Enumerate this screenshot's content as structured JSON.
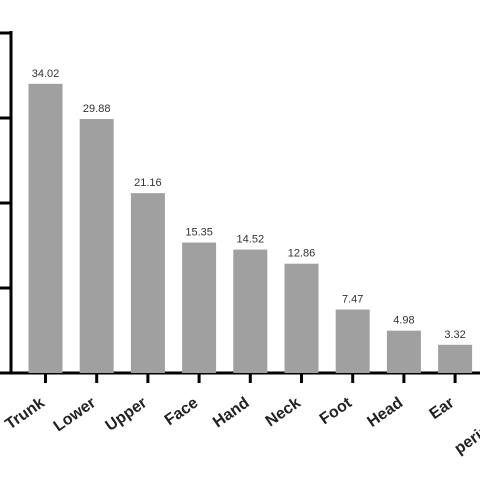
{
  "chart_data": {
    "type": "bar",
    "categories": [
      "Trunk",
      "Lower",
      "Upper",
      "Face",
      "Hand",
      "Neck",
      "Foot",
      "Head",
      "Ear",
      "perine"
    ],
    "values": [
      34.02,
      29.88,
      21.16,
      15.35,
      14.52,
      12.86,
      7.47,
      4.98,
      3.32,
      null
    ],
    "value_labels": [
      "34.02",
      "29.88",
      "21.16",
      "15.35",
      "14.52",
      "12.86",
      "7.47",
      "4.98",
      "3.32",
      ""
    ],
    "ylim": [
      0,
      40
    ],
    "y_ticks": [
      0,
      10,
      20,
      30,
      40
    ],
    "grid": false,
    "bar_color": "#a0a0a0",
    "axis_color": "#000000"
  }
}
